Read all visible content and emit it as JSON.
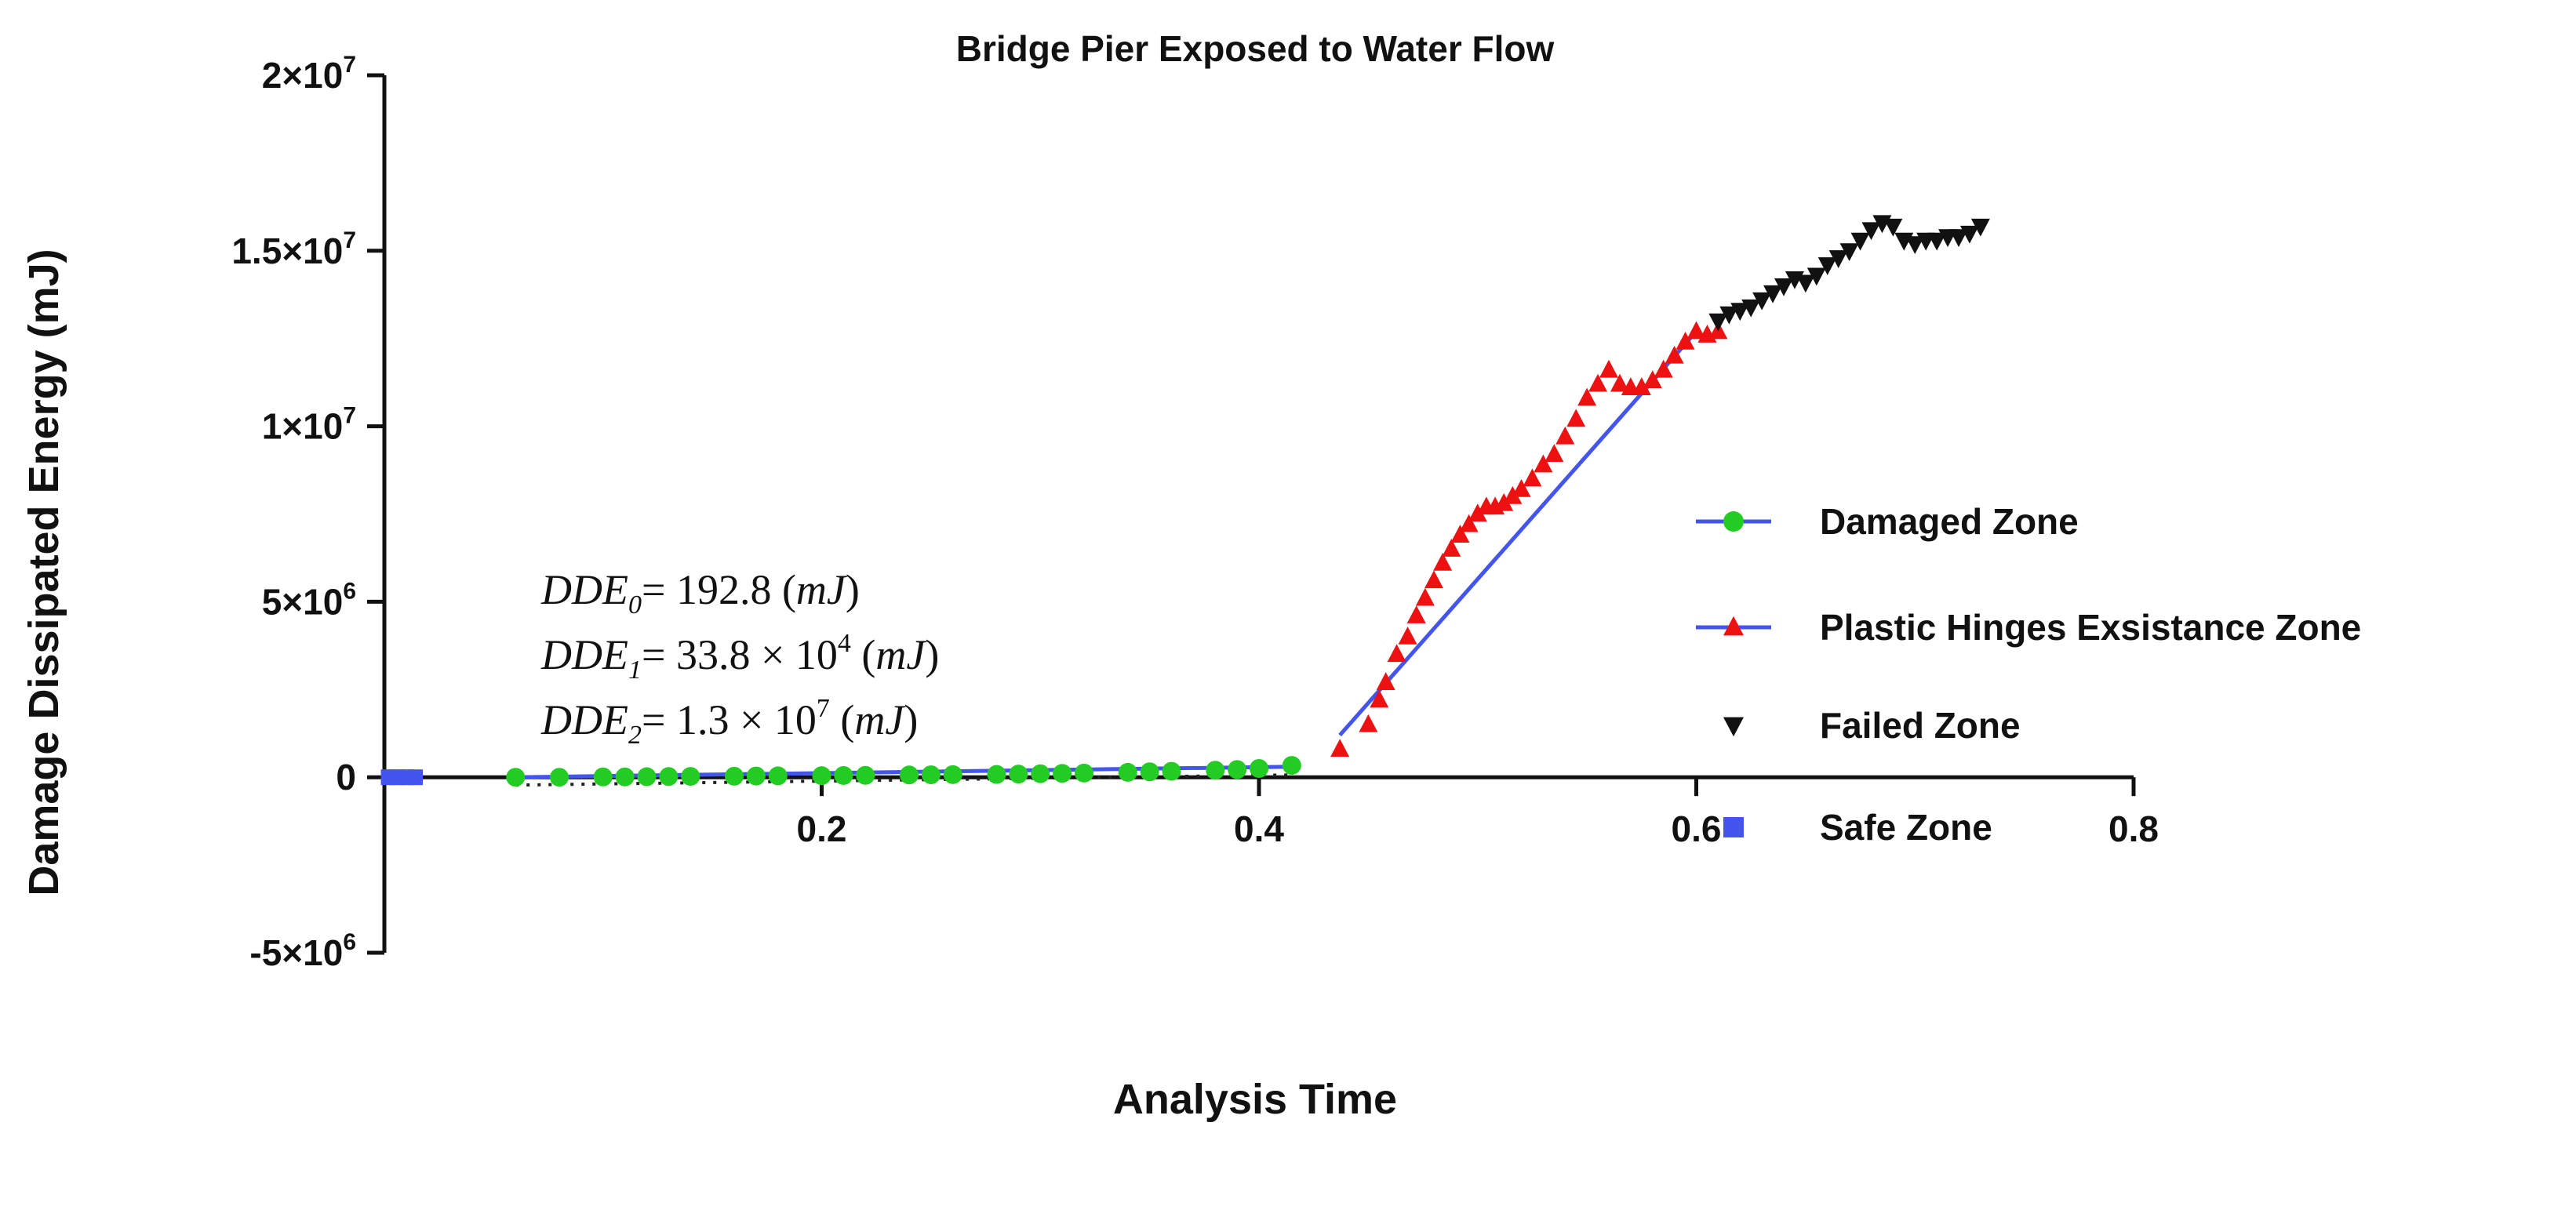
{
  "chart_data": {
    "type": "scatter",
    "title": "Bridge Pier Exposed to Water Flow",
    "xlabel": "Analysis Time",
    "ylabel": "Damage Dissipated Energy (mJ)",
    "xlim": [
      0,
      0.8
    ],
    "ylim": [
      -5000000,
      20000000
    ],
    "x_ticks": [
      {
        "value": 0.2,
        "label": "0.2"
      },
      {
        "value": 0.4,
        "label": "0.4"
      },
      {
        "value": 0.6,
        "label": "0.6"
      },
      {
        "value": 0.8,
        "label": "0.8"
      }
    ],
    "y_ticks": [
      {
        "value": 20000000,
        "mantissa": "2",
        "exponent": "7"
      },
      {
        "value": 15000000,
        "mantissa": "1.5",
        "exponent": "7"
      },
      {
        "value": 10000000,
        "mantissa": "1",
        "exponent": "7"
      },
      {
        "value": 5000000,
        "mantissa": "5",
        "exponent": "6"
      },
      {
        "value": 0,
        "mantissa": "0",
        "exponent": ""
      },
      {
        "value": -5000000,
        "mantissa": "-5",
        "exponent": "6"
      }
    ],
    "legend_position": "right",
    "series": [
      {
        "name": "Damaged Zone",
        "marker": "circle",
        "color": "#22cc22",
        "fit_line_color": "#4455ee",
        "x": [
          0.06,
          0.08,
          0.1,
          0.11,
          0.12,
          0.13,
          0.14,
          0.16,
          0.17,
          0.18,
          0.2,
          0.21,
          0.22,
          0.24,
          0.25,
          0.26,
          0.28,
          0.29,
          0.3,
          0.31,
          0.32,
          0.34,
          0.35,
          0.36,
          0.38,
          0.39,
          0.4,
          0.415
        ],
        "y": [
          0,
          0,
          10000,
          10000,
          15000,
          20000,
          25000,
          30000,
          35000,
          40000,
          45000,
          50000,
          55000,
          65000,
          70000,
          75000,
          80000,
          90000,
          100000,
          110000,
          120000,
          140000,
          155000,
          170000,
          200000,
          220000,
          250000,
          338000
        ]
      },
      {
        "name": "Plastic Hinges Exsistance Zone",
        "marker": "triangle-up",
        "color": "#ee1111",
        "fit_line_color": "#4455ee",
        "x": [
          0.437,
          0.45,
          0.455,
          0.458,
          0.463,
          0.468,
          0.472,
          0.476,
          0.48,
          0.484,
          0.488,
          0.492,
          0.496,
          0.5,
          0.504,
          0.508,
          0.512,
          0.516,
          0.52,
          0.525,
          0.53,
          0.535,
          0.54,
          0.545,
          0.55,
          0.555,
          0.56,
          0.565,
          0.57,
          0.575,
          0.58,
          0.585,
          0.59,
          0.595,
          0.6,
          0.605,
          0.61
        ],
        "y": [
          800000,
          1500000,
          2200000,
          2700000,
          3500000,
          4000000,
          4600000,
          5100000,
          5600000,
          6100000,
          6500000,
          6900000,
          7200000,
          7500000,
          7700000,
          7700000,
          7800000,
          8000000,
          8200000,
          8500000,
          8900000,
          9200000,
          9700000,
          10200000,
          10800000,
          11200000,
          11600000,
          11200000,
          11100000,
          11100000,
          11300000,
          11600000,
          12000000,
          12400000,
          12700000,
          12600000,
          12700000
        ]
      },
      {
        "name": "Failed Zone",
        "marker": "triangle-down",
        "color": "#111111",
        "x": [
          0.61,
          0.615,
          0.62,
          0.625,
          0.63,
          0.635,
          0.64,
          0.645,
          0.65,
          0.655,
          0.66,
          0.665,
          0.67,
          0.675,
          0.68,
          0.685,
          0.69,
          0.695,
          0.7,
          0.705,
          0.71,
          0.715,
          0.72,
          0.725,
          0.73
        ],
        "y": [
          13000000,
          13200000,
          13300000,
          13400000,
          13600000,
          13800000,
          14000000,
          14200000,
          14100000,
          14300000,
          14600000,
          14800000,
          15000000,
          15300000,
          15600000,
          15800000,
          15700000,
          15300000,
          15200000,
          15300000,
          15300000,
          15400000,
          15400000,
          15500000,
          15700000
        ]
      },
      {
        "name": "Safe Zone",
        "marker": "square",
        "color": "#4455ee",
        "x": [
          0.002,
          0.006,
          0.01,
          0.014
        ],
        "y": [
          0,
          0,
          0,
          0
        ]
      }
    ],
    "fit_lines": [
      {
        "x": [
          0.06,
          0.415
        ],
        "y": [
          0,
          300000
        ],
        "color": "#4455ee"
      },
      {
        "x": [
          0.437,
          0.6
        ],
        "y": [
          1200000,
          12700000
        ],
        "color": "#4455ee"
      }
    ],
    "annotations": [
      {
        "prefix": "DDE",
        "sub": "0",
        "eq": "= 192.8 (",
        "unit": "mJ",
        "close": ")",
        "mid": "",
        "power": ""
      },
      {
        "prefix": "DDE",
        "sub": "1",
        "eq": "= 33.8 × 10",
        "power": "4",
        "mid": " (",
        "unit": "mJ",
        "close": ")"
      },
      {
        "prefix": "DDE",
        "sub": "2",
        "eq": "= 1.3 × 10",
        "power": "7",
        "mid": " (",
        "unit": "mJ",
        "close": ")"
      }
    ]
  }
}
